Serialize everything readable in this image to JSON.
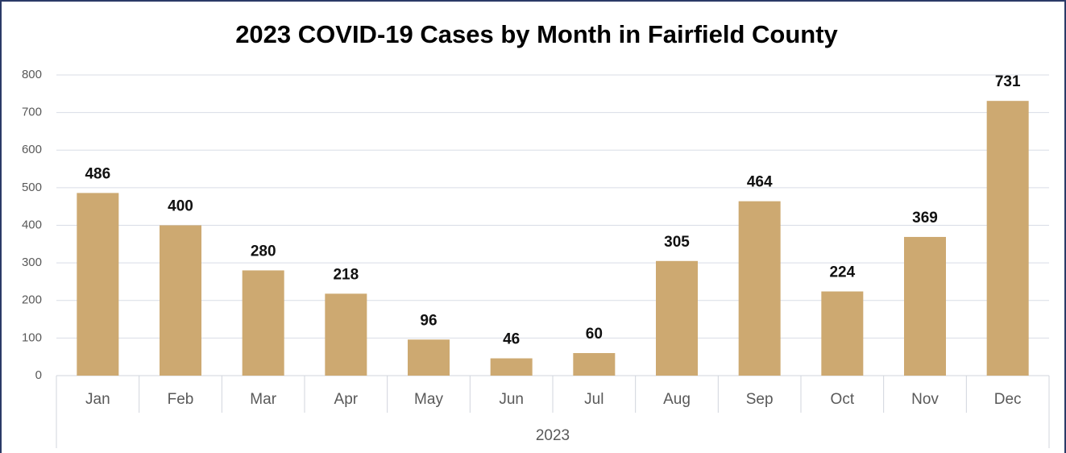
{
  "chart_data": {
    "type": "bar",
    "title": "2023 COVID-19 Cases by Month in Fairfield County",
    "categories": [
      "Jan",
      "Feb",
      "Mar",
      "Apr",
      "May",
      "Jun",
      "Jul",
      "Aug",
      "Sep",
      "Oct",
      "Nov",
      "Dec"
    ],
    "category_group": "2023",
    "values": [
      486,
      400,
      280,
      218,
      96,
      46,
      60,
      305,
      464,
      224,
      369,
      731
    ],
    "color": "#cda971",
    "ylim": [
      0,
      800
    ],
    "yticks": [
      0,
      100,
      200,
      300,
      400,
      500,
      600,
      700,
      800
    ],
    "grid": true,
    "data_labels": true
  }
}
